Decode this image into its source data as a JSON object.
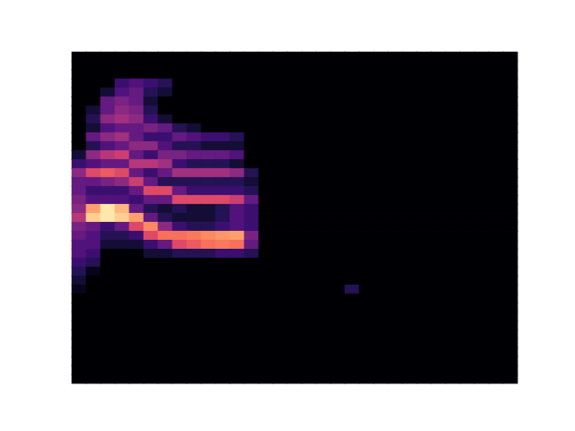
{
  "chart_data": {
    "type": "heatmap",
    "color": "magma",
    "clim": [
      0,
      1
    ],
    "tick_labels": false,
    "z": [
      [
        0,
        0,
        0,
        0,
        0,
        0,
        0,
        0,
        0,
        0,
        0,
        0,
        0,
        0,
        0,
        0,
        0,
        0,
        0,
        0,
        0,
        0,
        0,
        0,
        0,
        0,
        0,
        0,
        0,
        0,
        0
      ],
      [
        0,
        0,
        0,
        0,
        0,
        0,
        0,
        0,
        0,
        0,
        0,
        0,
        0,
        0,
        0,
        0,
        0,
        0,
        0,
        0,
        0,
        0,
        0,
        0,
        0,
        0,
        0,
        0,
        0,
        0,
        0
      ],
      [
        0,
        0,
        0,
        0,
        0,
        0,
        0,
        0,
        0,
        0,
        0,
        0,
        0,
        0,
        0,
        0,
        0,
        0,
        0,
        0,
        0,
        0,
        0,
        0,
        0,
        0,
        0,
        0,
        0,
        0,
        0
      ],
      [
        0,
        0,
        0,
        0.2,
        0.25,
        0.2,
        0.15,
        0,
        0,
        0,
        0,
        0,
        0,
        0,
        0,
        0,
        0,
        0,
        0,
        0,
        0,
        0,
        0,
        0,
        0,
        0,
        0,
        0,
        0,
        0,
        0
      ],
      [
        0,
        0,
        0.1,
        0.25,
        0.3,
        0.15,
        0.1,
        0,
        0,
        0,
        0,
        0,
        0,
        0,
        0,
        0,
        0,
        0,
        0,
        0,
        0,
        0,
        0,
        0,
        0,
        0,
        0,
        0,
        0,
        0,
        0
      ],
      [
        0,
        0,
        0.3,
        0.35,
        0.3,
        0.1,
        0,
        0,
        0,
        0,
        0,
        0,
        0,
        0,
        0,
        0,
        0,
        0,
        0,
        0,
        0,
        0,
        0,
        0,
        0,
        0,
        0,
        0,
        0,
        0,
        0
      ],
      [
        0,
        0.1,
        0.3,
        0.4,
        0.35,
        0.15,
        0,
        0,
        0,
        0,
        0,
        0,
        0,
        0,
        0,
        0,
        0,
        0,
        0,
        0,
        0,
        0,
        0,
        0,
        0,
        0,
        0,
        0,
        0,
        0,
        0
      ],
      [
        0,
        0.15,
        0.4,
        0.45,
        0.4,
        0.2,
        0.1,
        0,
        0,
        0,
        0,
        0,
        0,
        0,
        0,
        0,
        0,
        0,
        0,
        0,
        0,
        0,
        0,
        0,
        0,
        0,
        0,
        0,
        0,
        0,
        0
      ],
      [
        0,
        0.1,
        0.25,
        0.3,
        0.3,
        0.35,
        0.3,
        0.15,
        0.1,
        0,
        0,
        0,
        0,
        0,
        0,
        0,
        0,
        0,
        0,
        0,
        0,
        0,
        0,
        0,
        0,
        0,
        0,
        0,
        0,
        0,
        0
      ],
      [
        0,
        0.3,
        0.4,
        0.45,
        0.3,
        0.2,
        0.2,
        0.3,
        0.25,
        0.2,
        0.2,
        0.15,
        0,
        0,
        0,
        0,
        0,
        0,
        0,
        0,
        0,
        0,
        0,
        0,
        0,
        0,
        0,
        0,
        0,
        0,
        0
      ],
      [
        0,
        0.15,
        0.25,
        0.3,
        0.4,
        0.4,
        0.25,
        0.15,
        0.15,
        0.1,
        0.1,
        0.1,
        0,
        0,
        0,
        0,
        0,
        0,
        0,
        0,
        0,
        0,
        0,
        0,
        0,
        0,
        0,
        0,
        0,
        0,
        0
      ],
      [
        0.1,
        0.4,
        0.5,
        0.55,
        0.3,
        0.2,
        0.35,
        0.35,
        0.3,
        0.3,
        0.3,
        0.25,
        0,
        0,
        0,
        0,
        0,
        0,
        0,
        0,
        0,
        0,
        0,
        0,
        0,
        0,
        0,
        0,
        0,
        0,
        0
      ],
      [
        0.2,
        0.25,
        0.3,
        0.3,
        0.5,
        0.5,
        0.45,
        0.2,
        0.15,
        0.15,
        0.15,
        0.1,
        0,
        0,
        0,
        0,
        0,
        0,
        0,
        0,
        0,
        0,
        0,
        0,
        0,
        0,
        0,
        0,
        0,
        0,
        0
      ],
      [
        0.4,
        0.6,
        0.65,
        0.6,
        0.3,
        0.2,
        0.3,
        0.45,
        0.45,
        0.45,
        0.45,
        0.4,
        0.15,
        0,
        0,
        0,
        0,
        0,
        0,
        0,
        0,
        0,
        0,
        0,
        0,
        0,
        0,
        0,
        0,
        0,
        0
      ],
      [
        0.3,
        0.3,
        0.35,
        0.4,
        0.55,
        0.3,
        0.15,
        0.15,
        0.15,
        0.15,
        0.15,
        0.15,
        0.1,
        0,
        0,
        0,
        0,
        0,
        0,
        0,
        0,
        0,
        0,
        0,
        0,
        0,
        0,
        0,
        0,
        0,
        0
      ],
      [
        0.3,
        0.2,
        0.2,
        0.2,
        0.3,
        0.6,
        0.6,
        0.3,
        0.2,
        0.2,
        0.2,
        0.2,
        0.15,
        0,
        0,
        0,
        0,
        0,
        0,
        0,
        0,
        0,
        0,
        0,
        0,
        0,
        0,
        0,
        0,
        0,
        0
      ],
      [
        0.35,
        0.25,
        0.25,
        0.25,
        0.2,
        0.3,
        0.3,
        0.6,
        0.6,
        0.6,
        0.6,
        0.55,
        0.3,
        0,
        0,
        0,
        0,
        0,
        0,
        0,
        0,
        0,
        0,
        0,
        0,
        0,
        0,
        0,
        0,
        0,
        0
      ],
      [
        0.4,
        0.8,
        0.95,
        0.85,
        0.3,
        0.15,
        0.1,
        0.15,
        0.1,
        0.1,
        0.15,
        0.25,
        0.2,
        0,
        0,
        0,
        0,
        0,
        0,
        0,
        0,
        0,
        0,
        0,
        0,
        0,
        0,
        0,
        0,
        0,
        0
      ],
      [
        0.5,
        0.9,
        0.95,
        0.9,
        0.8,
        0.3,
        0.15,
        0.1,
        0.1,
        0.1,
        0.15,
        0.25,
        0.2,
        0,
        0,
        0,
        0,
        0,
        0,
        0,
        0,
        0,
        0,
        0,
        0,
        0,
        0,
        0,
        0,
        0,
        0
      ],
      [
        0.35,
        0.3,
        0.2,
        0.3,
        0.6,
        0.75,
        0.4,
        0.2,
        0.15,
        0.15,
        0.2,
        0.25,
        0.2,
        0,
        0,
        0,
        0,
        0,
        0,
        0,
        0,
        0,
        0,
        0,
        0,
        0,
        0,
        0,
        0,
        0,
        0
      ],
      [
        0.3,
        0.25,
        0.15,
        0.15,
        0.2,
        0.6,
        0.7,
        0.7,
        0.72,
        0.75,
        0.78,
        0.8,
        0.35,
        0,
        0,
        0,
        0,
        0,
        0,
        0,
        0,
        0,
        0,
        0,
        0,
        0,
        0,
        0,
        0,
        0,
        0
      ],
      [
        0.25,
        0.25,
        0.1,
        0.1,
        0.1,
        0.2,
        0.3,
        0.6,
        0.65,
        0.7,
        0.72,
        0.7,
        0.3,
        0,
        0,
        0,
        0,
        0,
        0,
        0,
        0,
        0,
        0,
        0,
        0,
        0,
        0,
        0,
        0,
        0,
        0
      ],
      [
        0.25,
        0.2,
        0,
        0,
        0,
        0.1,
        0.1,
        0.15,
        0.15,
        0.15,
        0.2,
        0.2,
        0.15,
        0,
        0,
        0,
        0,
        0,
        0,
        0,
        0,
        0,
        0,
        0,
        0,
        0,
        0,
        0,
        0,
        0,
        0
      ],
      [
        0.2,
        0.15,
        0,
        0,
        0,
        0,
        0,
        0,
        0,
        0,
        0,
        0,
        0,
        0,
        0,
        0,
        0,
        0,
        0,
        0,
        0,
        0,
        0,
        0,
        0,
        0,
        0,
        0,
        0,
        0,
        0
      ],
      [
        0.15,
        0.05,
        0,
        0,
        0,
        0,
        0,
        0,
        0,
        0,
        0,
        0,
        0,
        0,
        0,
        0,
        0,
        0,
        0,
        0,
        0,
        0,
        0,
        0,
        0,
        0,
        0,
        0,
        0,
        0,
        0
      ],
      [
        0.1,
        0,
        0,
        0,
        0,
        0,
        0,
        0,
        0,
        0,
        0,
        0,
        0,
        0,
        0,
        0,
        0,
        0,
        0,
        0,
        0,
        0,
        0,
        0,
        0,
        0,
        0,
        0,
        0,
        0,
        0
      ],
      [
        0.05,
        0,
        0,
        0,
        0,
        0,
        0,
        0,
        0,
        0,
        0,
        0,
        0,
        0,
        0,
        0,
        0,
        0,
        0,
        0.15,
        0,
        0,
        0,
        0,
        0,
        0,
        0,
        0,
        0,
        0,
        0
      ],
      [
        0,
        0,
        0,
        0,
        0,
        0,
        0,
        0,
        0,
        0,
        0,
        0,
        0,
        0,
        0,
        0,
        0,
        0,
        0,
        0,
        0,
        0,
        0,
        0,
        0,
        0,
        0,
        0,
        0,
        0,
        0
      ],
      [
        0,
        0,
        0,
        0,
        0,
        0,
        0,
        0,
        0,
        0,
        0,
        0,
        0,
        0,
        0,
        0,
        0,
        0,
        0,
        0,
        0,
        0,
        0,
        0,
        0,
        0,
        0,
        0,
        0,
        0,
        0
      ],
      [
        0,
        0,
        0,
        0,
        0,
        0,
        0,
        0,
        0,
        0,
        0,
        0,
        0,
        0,
        0,
        0,
        0,
        0,
        0,
        0,
        0,
        0,
        0,
        0,
        0,
        0,
        0,
        0,
        0,
        0,
        0
      ],
      [
        0,
        0,
        0,
        0,
        0,
        0,
        0,
        0,
        0,
        0,
        0,
        0,
        0,
        0,
        0,
        0,
        0,
        0,
        0,
        0,
        0,
        0,
        0,
        0,
        0,
        0,
        0,
        0,
        0,
        0,
        0
      ],
      [
        0,
        0,
        0,
        0,
        0,
        0,
        0,
        0,
        0,
        0,
        0,
        0,
        0,
        0,
        0,
        0,
        0,
        0,
        0,
        0,
        0,
        0,
        0,
        0,
        0,
        0,
        0,
        0,
        0,
        0,
        0
      ],
      [
        0,
        0,
        0,
        0,
        0,
        0,
        0,
        0,
        0,
        0,
        0,
        0,
        0,
        0,
        0,
        0,
        0,
        0,
        0,
        0,
        0,
        0,
        0,
        0,
        0,
        0,
        0,
        0,
        0,
        0,
        0
      ],
      [
        0,
        0,
        0,
        0,
        0,
        0,
        0,
        0,
        0,
        0,
        0,
        0,
        0,
        0,
        0,
        0,
        0,
        0,
        0,
        0,
        0,
        0,
        0,
        0,
        0,
        0,
        0,
        0,
        0,
        0,
        0
      ],
      [
        0,
        0,
        0,
        0,
        0,
        0,
        0,
        0,
        0,
        0,
        0,
        0,
        0,
        0,
        0,
        0,
        0,
        0,
        0,
        0,
        0,
        0,
        0,
        0,
        0,
        0,
        0,
        0,
        0,
        0,
        0
      ],
      [
        0,
        0,
        0,
        0,
        0,
        0,
        0,
        0,
        0,
        0,
        0,
        0,
        0,
        0,
        0,
        0,
        0,
        0,
        0,
        0,
        0,
        0,
        0,
        0,
        0,
        0,
        0,
        0,
        0,
        0,
        0
      ],
      [
        0,
        0,
        0,
        0,
        0,
        0,
        0,
        0,
        0,
        0,
        0,
        0,
        0,
        0,
        0,
        0,
        0,
        0,
        0,
        0,
        0,
        0,
        0,
        0,
        0,
        0,
        0,
        0,
        0,
        0,
        0
      ]
    ]
  }
}
